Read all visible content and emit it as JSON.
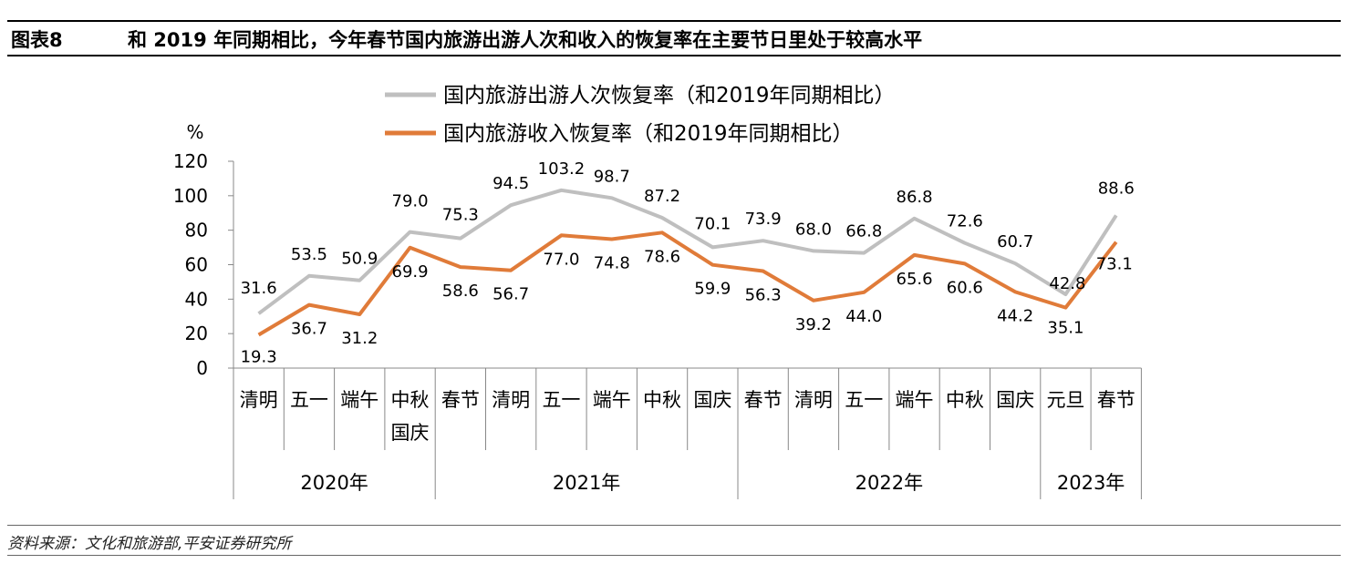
{
  "figure_label": "图表8",
  "figure_title": "和 2019 年同期相比，今年春节国内旅游出游人次和收入的恢复率在主要节日里处于较高水平",
  "source": "资料来源：文化和旅游部,平安证券研究所",
  "chart_data": {
    "type": "line",
    "ylabel": "%",
    "ylim": [
      0,
      120
    ],
    "yticks": [
      0,
      20,
      40,
      60,
      80,
      100,
      120
    ],
    "categories": [
      [
        "清明"
      ],
      [
        "五一"
      ],
      [
        "端午"
      ],
      [
        "中秋",
        "国庆"
      ],
      [
        "春节"
      ],
      [
        "清明"
      ],
      [
        "五一"
      ],
      [
        "端午"
      ],
      [
        "中秋"
      ],
      [
        "国庆"
      ],
      [
        "春节"
      ],
      [
        "清明"
      ],
      [
        "五一"
      ],
      [
        "端午"
      ],
      [
        "中秋"
      ],
      [
        "国庆"
      ],
      [
        "元旦"
      ],
      [
        "春节"
      ]
    ],
    "years": [
      {
        "label": "2020年",
        "start": 0,
        "end": 3
      },
      {
        "label": "2021年",
        "start": 4,
        "end": 9
      },
      {
        "label": "2022年",
        "start": 10,
        "end": 15
      },
      {
        "label": "2023年",
        "start": 16,
        "end": 17
      }
    ],
    "series": [
      {
        "name": "国内旅游出游人次恢复率（和2019年同期相比）",
        "color": "#bfbfbf",
        "values": [
          31.6,
          53.5,
          50.9,
          79.0,
          75.3,
          94.5,
          103.2,
          98.7,
          87.2,
          70.1,
          73.9,
          68.0,
          66.8,
          86.8,
          72.6,
          60.7,
          42.8,
          88.6
        ],
        "labels": [
          "31.6",
          "53.5",
          "50.9",
          "79.0",
          "75.3",
          "94.5",
          "103.2",
          "98.7",
          "87.2",
          "70.1",
          "73.9",
          "68.0",
          "66.8",
          "86.8",
          "72.6",
          "60.7",
          "42.8",
          "88.6"
        ]
      },
      {
        "name": "国内旅游收入恢复率（和2019年同期相比）",
        "color": "#e07b39",
        "values": [
          19.3,
          36.7,
          31.2,
          69.9,
          58.6,
          56.7,
          77.0,
          74.8,
          78.6,
          59.9,
          56.3,
          39.2,
          44.0,
          65.6,
          60.6,
          44.2,
          35.1,
          73.1
        ],
        "labels": [
          "19.3",
          "36.7",
          "31.2",
          "69.9",
          "58.6",
          "56.7",
          "77.0",
          "74.8",
          "78.6",
          "59.9",
          "56.3",
          "39.2",
          "44.0",
          "65.6",
          "60.6",
          "44.2",
          "35.1",
          "73.1"
        ]
      }
    ],
    "grid": false,
    "legend_position": "top-center"
  }
}
